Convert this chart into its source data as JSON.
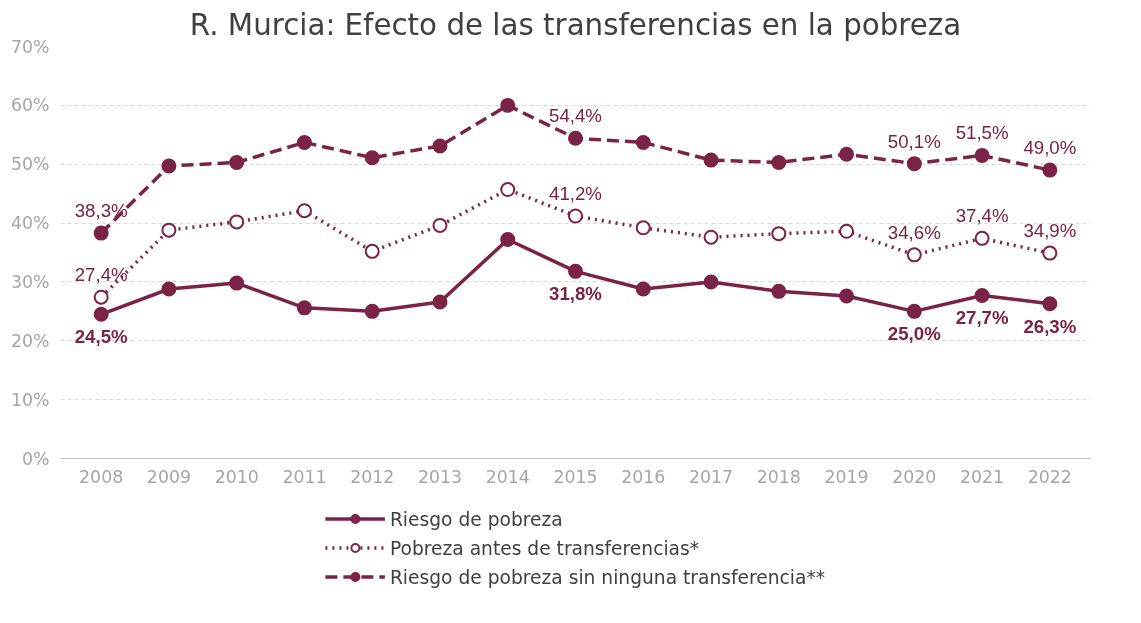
{
  "chart_data": {
    "type": "line",
    "title": "R. Murcia: Efecto de las transferencias en la pobreza",
    "categories": [
      "2008",
      "2009",
      "2010",
      "2011",
      "2012",
      "2013",
      "2014",
      "2015",
      "2016",
      "2017",
      "2018",
      "2019",
      "2020",
      "2021",
      "2022"
    ],
    "ylim": [
      0,
      70
    ],
    "yticks": [
      {
        "value": 0,
        "label": "0%"
      },
      {
        "value": 10,
        "label": "10%"
      },
      {
        "value": 20,
        "label": "20%"
      },
      {
        "value": 30,
        "label": "30%"
      },
      {
        "value": 40,
        "label": "40%"
      },
      {
        "value": 50,
        "label": "50%"
      },
      {
        "value": 60,
        "label": "60%"
      },
      {
        "value": 70,
        "label": "70%"
      }
    ],
    "grid": "y",
    "legend": "bottom",
    "marker": "circle",
    "series": [
      {
        "name": "Riesgo de pobreza",
        "color": "#7b2346",
        "line_style": "solid",
        "values": [
          24.5,
          28.8,
          29.8,
          25.6,
          25.0,
          26.6,
          37.2,
          31.8,
          28.8,
          30.0,
          28.4,
          27.6,
          25.0,
          27.7,
          26.3
        ],
        "value_labels": [
          "24,5%",
          null,
          null,
          null,
          null,
          null,
          null,
          "31,8%",
          null,
          null,
          null,
          null,
          "25,0%",
          "27,7%",
          "26,3%"
        ]
      },
      {
        "name": "Pobreza antes de transferencias*",
        "color": "#7b2346",
        "line_style": "dotted",
        "values": [
          27.4,
          38.8,
          40.2,
          42.1,
          35.2,
          39.6,
          45.7,
          41.2,
          39.2,
          37.6,
          38.2,
          38.6,
          34.6,
          37.4,
          34.9
        ],
        "value_labels": [
          "27,4%",
          null,
          null,
          null,
          null,
          null,
          null,
          "41,2%",
          null,
          null,
          null,
          null,
          "34,6%",
          "37,4%",
          "34,9%"
        ]
      },
      {
        "name": "Riesgo de pobreza sin ninguna transferencia**",
        "color": "#7b2346",
        "line_style": "dashed",
        "values": [
          38.3,
          49.7,
          50.3,
          53.7,
          51.1,
          53.1,
          60.0,
          54.4,
          53.7,
          50.7,
          50.3,
          51.7,
          50.1,
          51.5,
          49.0
        ],
        "value_labels": [
          "38,3%",
          null,
          null,
          null,
          null,
          null,
          null,
          "54,4%",
          null,
          null,
          null,
          null,
          "50,1%",
          "51,5%",
          "49,0%"
        ]
      }
    ]
  }
}
